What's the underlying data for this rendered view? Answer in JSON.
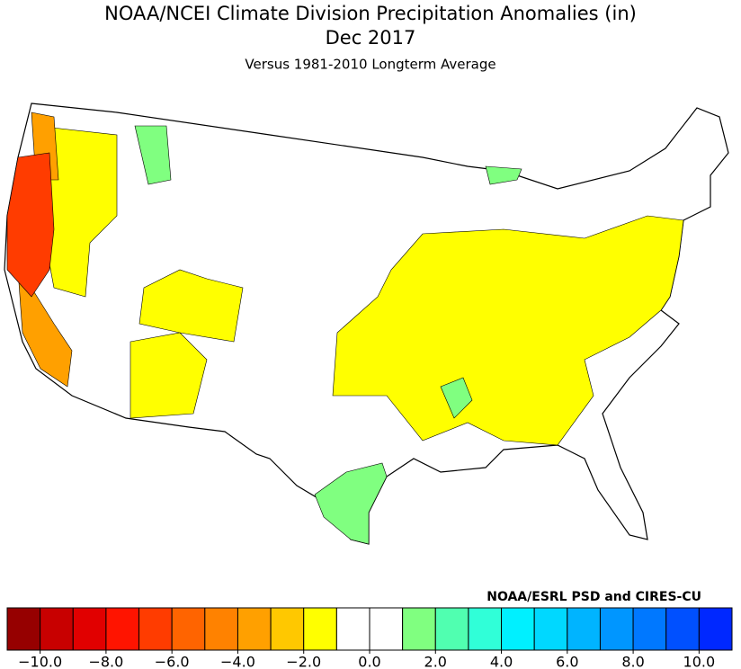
{
  "title": "NOAA/NCEI Climate Division Precipitation Anomalies (in)",
  "date": "Dec 2017",
  "subtitle": "Versus 1981-2010 Longterm Average",
  "credit": "NOAA/ESRL PSD and CIRES-CU",
  "colorbar": {
    "bounds": [
      -11,
      -10,
      -9,
      -8,
      -7,
      -6,
      -5,
      -4,
      -3,
      -2,
      -1,
      0,
      1,
      2,
      3,
      4,
      5,
      6,
      7,
      8,
      9,
      10,
      11
    ],
    "colors": [
      "#960000",
      "#c80000",
      "#e10000",
      "#ff1400",
      "#ff3c00",
      "#ff6400",
      "#ff8200",
      "#ffa000",
      "#ffc800",
      "#ffff00",
      "#ffffff",
      "#ffffff",
      "#80ff80",
      "#50ffb0",
      "#30ffd8",
      "#00f0ff",
      "#00d8ff",
      "#00b4ff",
      "#0096ff",
      "#0078ff",
      "#0050ff",
      "#0028ff"
    ],
    "ticks": [
      {
        "value": -10,
        "label": "−10.0"
      },
      {
        "value": -8,
        "label": "−8.0"
      },
      {
        "value": -6,
        "label": "−6.0"
      },
      {
        "value": -4,
        "label": "−4.0"
      },
      {
        "value": -2,
        "label": "−2.0"
      },
      {
        "value": 0,
        "label": "0.0"
      },
      {
        "value": 2,
        "label": "2.0"
      },
      {
        "value": 4,
        "label": "4.0"
      },
      {
        "value": 6,
        "label": "6.0"
      },
      {
        "value": 8,
        "label": "8.0"
      },
      {
        "value": 10,
        "label": "10.0"
      }
    ]
  }
}
